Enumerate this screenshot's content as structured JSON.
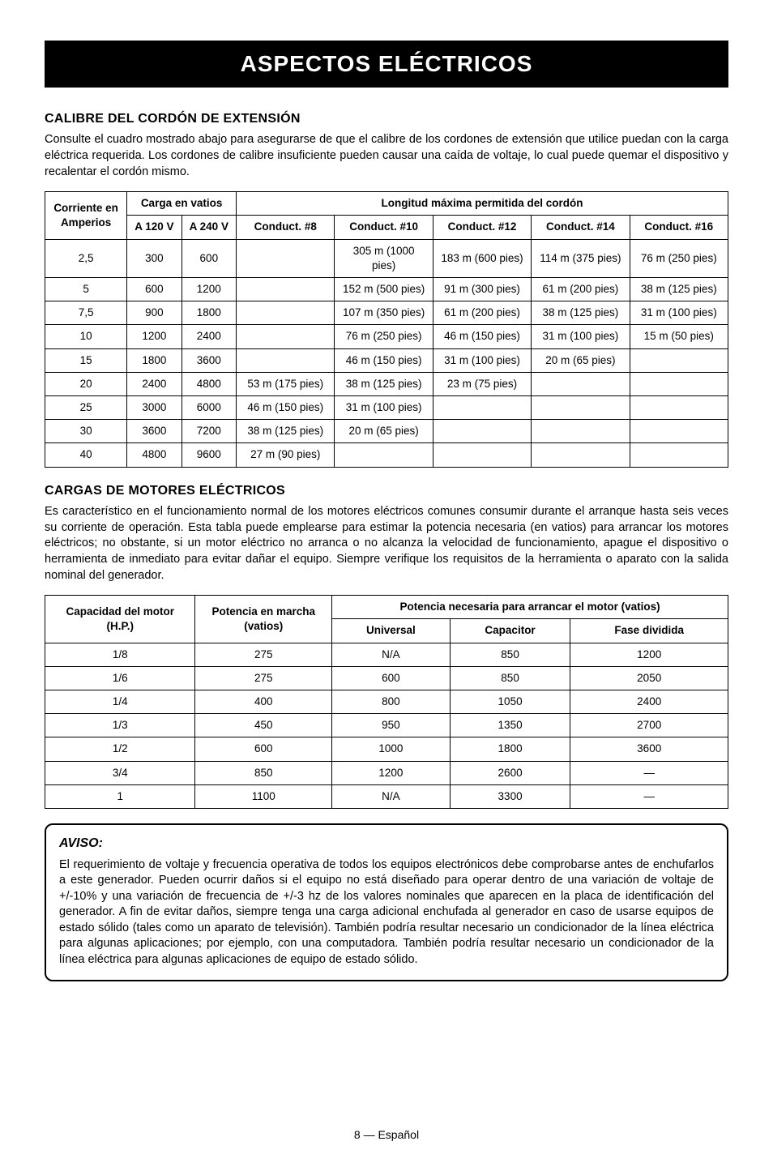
{
  "page": {
    "title": "ASPECTOS ELÉCTRICOS",
    "footer": "8 — Español"
  },
  "section1": {
    "heading": "CALIBRE DEL CORDÓN DE EXTENSIÓN",
    "text": "Consulte el cuadro mostrado abajo para asegurarse de que el calibre de los cordones de extensión que utilice puedan con la carga eléctrica requerida. Los cordones de calibre insuficiente pueden causar una caída de voltaje, lo cual puede quemar el dispositivo y recalentar el cordón mismo."
  },
  "table1": {
    "head": {
      "amps_top": "Corriente en",
      "amps_bot": "Amperios",
      "load_top": "Carga en vatios",
      "load_120": "A 120 V",
      "load_240": "A 240 V",
      "len_top": "Longitud máxima permitida del cordón",
      "c8": "Conduct. #8",
      "c10": "Conduct. #10",
      "c12": "Conduct. #12",
      "c14": "Conduct. #14",
      "c16": "Conduct. #16"
    },
    "rows": [
      {
        "a": "2,5",
        "v120": "300",
        "v240": "600",
        "c8": "",
        "c10": "305 m (1000 pies)",
        "c12": "183 m (600 pies)",
        "c14": "114 m (375 pies)",
        "c16": "76 m (250 pies)"
      },
      {
        "a": "5",
        "v120": "600",
        "v240": "1200",
        "c8": "",
        "c10": "152 m (500 pies)",
        "c12": "91 m (300 pies)",
        "c14": "61 m (200 pies)",
        "c16": "38 m (125 pies)"
      },
      {
        "a": "7,5",
        "v120": "900",
        "v240": "1800",
        "c8": "",
        "c10": "107 m (350 pies)",
        "c12": "61 m (200 pies)",
        "c14": "38 m (125 pies)",
        "c16": "31 m (100 pies)"
      },
      {
        "a": "10",
        "v120": "1200",
        "v240": "2400",
        "c8": "",
        "c10": "76 m (250 pies)",
        "c12": "46 m (150 pies)",
        "c14": "31 m (100 pies)",
        "c16": "15 m (50 pies)"
      },
      {
        "a": "15",
        "v120": "1800",
        "v240": "3600",
        "c8": "",
        "c10": "46 m (150 pies)",
        "c12": "31 m (100 pies)",
        "c14": "20 m (65 pies)",
        "c16": ""
      },
      {
        "a": "20",
        "v120": "2400",
        "v240": "4800",
        "c8": "53 m (175 pies)",
        "c10": "38 m (125 pies)",
        "c12": "23 m (75 pies)",
        "c14": "",
        "c16": ""
      },
      {
        "a": "25",
        "v120": "3000",
        "v240": "6000",
        "c8": "46 m (150 pies)",
        "c10": "31 m (100 pies)",
        "c12": "",
        "c14": "",
        "c16": ""
      },
      {
        "a": "30",
        "v120": "3600",
        "v240": "7200",
        "c8": "38 m (125 pies)",
        "c10": "20 m (65 pies)",
        "c12": "",
        "c14": "",
        "c16": ""
      },
      {
        "a": "40",
        "v120": "4800",
        "v240": "9600",
        "c8": "27 m (90 pies)",
        "c10": "",
        "c12": "",
        "c14": "",
        "c16": ""
      }
    ]
  },
  "section2": {
    "heading": "CARGAS DE MOTORES ELÉCTRICOS",
    "text": "Es característico en el funcionamiento normal de los motores eléctricos comunes consumir durante el arranque hasta seis veces su corriente de operación. Esta tabla puede emplearse para estimar la potencia necesaria (en vatios) para arrancar los motores eléctricos; no obstante, si un motor eléctrico no arranca o no alcanza la velocidad de funcionamiento, apague el dispositivo o herramienta de inmediato para evitar dañar el equipo. Siempre verifique los requisitos de la herramienta o aparato con la salida nominal del generador."
  },
  "table2": {
    "head": {
      "hp_top": "Capacidad del motor",
      "hp_bot": "(H.P.)",
      "run_top": "Potencia en marcha",
      "run_bot": "(vatios)",
      "start_top": "Potencia necesaria para arrancar el motor (vatios)",
      "univ": "Universal",
      "cap": "Capacitor",
      "split": "Fase dividida"
    },
    "rows": [
      {
        "hp": "1/8",
        "run": "275",
        "u": "N/A",
        "c": "850",
        "s": "1200"
      },
      {
        "hp": "1/6",
        "run": "275",
        "u": "600",
        "c": "850",
        "s": "2050"
      },
      {
        "hp": "1/4",
        "run": "400",
        "u": "800",
        "c": "1050",
        "s": "2400"
      },
      {
        "hp": "1/3",
        "run": "450",
        "u": "950",
        "c": "1350",
        "s": "2700"
      },
      {
        "hp": "1/2",
        "run": "600",
        "u": "1000",
        "c": "1800",
        "s": "3600"
      },
      {
        "hp": "3/4",
        "run": "850",
        "u": "1200",
        "c": "2600",
        "s": "—"
      },
      {
        "hp": "1",
        "run": "1100",
        "u": "N/A",
        "c": "3300",
        "s": "—"
      }
    ]
  },
  "notice": {
    "heading": "AVISO:",
    "text": "El requerimiento de voltaje y frecuencia operativa de todos los equipos electrónicos debe comprobarse antes de enchufarlos a este generador. Pueden ocurrir daños si el equipo no está diseñado para operar dentro de una variación de voltaje de +/-10% y una variación de frecuencia de +/-3 hz de los valores nominales que aparecen en la placa de identificación del generador. A fin de evitar daños, siempre tenga una carga adicional enchufada al generador en caso de usarse equipos de estado sólido (tales como un aparato de televisión). También podría resultar necesario un condicionador de la línea eléctrica para algunas aplicaciones; por ejemplo, con una computadora. También podría resultar necesario un condicionador de la línea eléctrica para algunas aplicaciones de equipo de estado sólido."
  }
}
